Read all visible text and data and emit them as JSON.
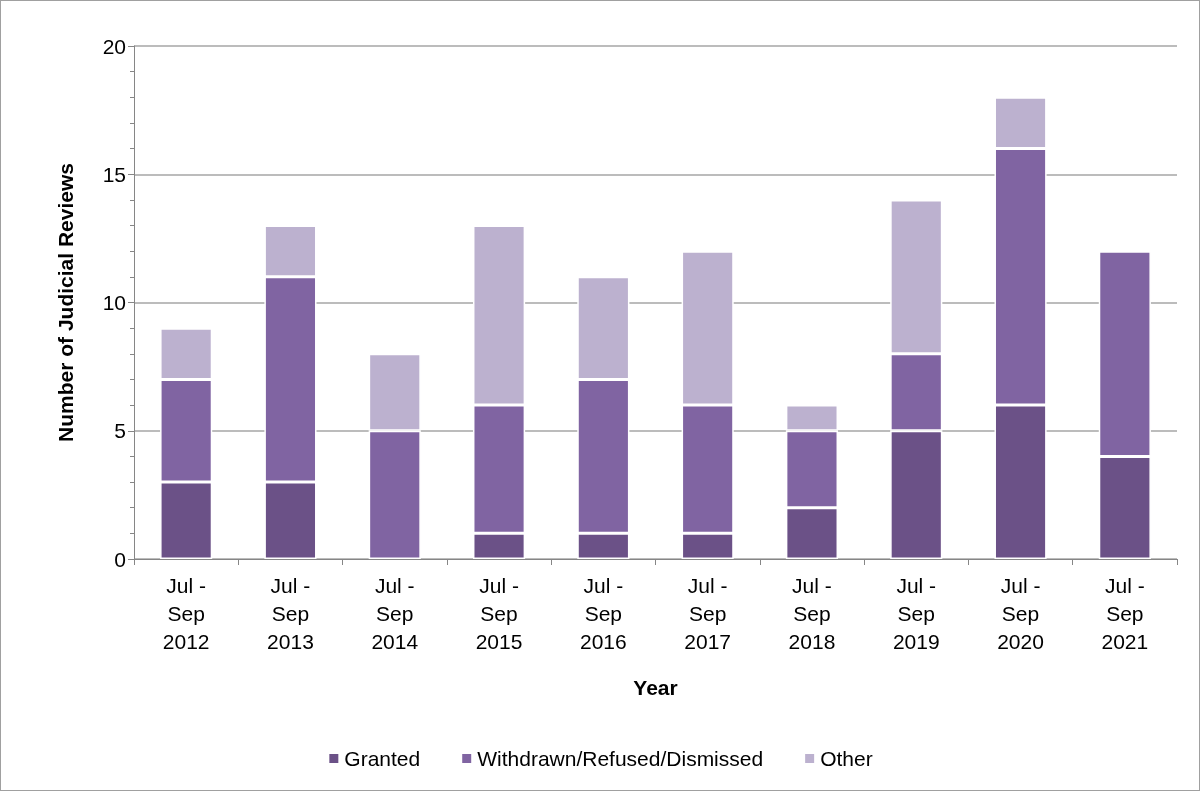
{
  "chart_data": {
    "type": "bar",
    "stacked": true,
    "xlabel": "Year",
    "ylabel": "Number of Judicial Reviews",
    "categories": [
      "Jul -\nSep\n2012",
      "Jul -\nSep\n2013",
      "Jul -\nSep\n2014",
      "Jul -\nSep\n2015",
      "Jul -\nSep\n2016",
      "Jul -\nSep\n2017",
      "Jul -\nSep\n2018",
      "Jul -\nSep\n2019",
      "Jul -\nSep\n2020",
      "Jul -\nSep\n2021"
    ],
    "series": [
      {
        "name": "Granted",
        "color": "#6b5187",
        "values": [
          3,
          3,
          0,
          1,
          1,
          1,
          2,
          5,
          6,
          4
        ]
      },
      {
        "name": "Withdrawn/Refused/Dismissed",
        "color": "#8064a2",
        "values": [
          4,
          8,
          5,
          5,
          6,
          5,
          3,
          3,
          10,
          8
        ]
      },
      {
        "name": "Other",
        "color": "#bcb1cf",
        "values": [
          2,
          2,
          3,
          7,
          4,
          6,
          1,
          6,
          2,
          0
        ]
      }
    ],
    "ylim": [
      0,
      20
    ],
    "yticks": [
      0,
      5,
      10,
      15,
      20
    ],
    "grid": "y",
    "legend": "bottom"
  }
}
